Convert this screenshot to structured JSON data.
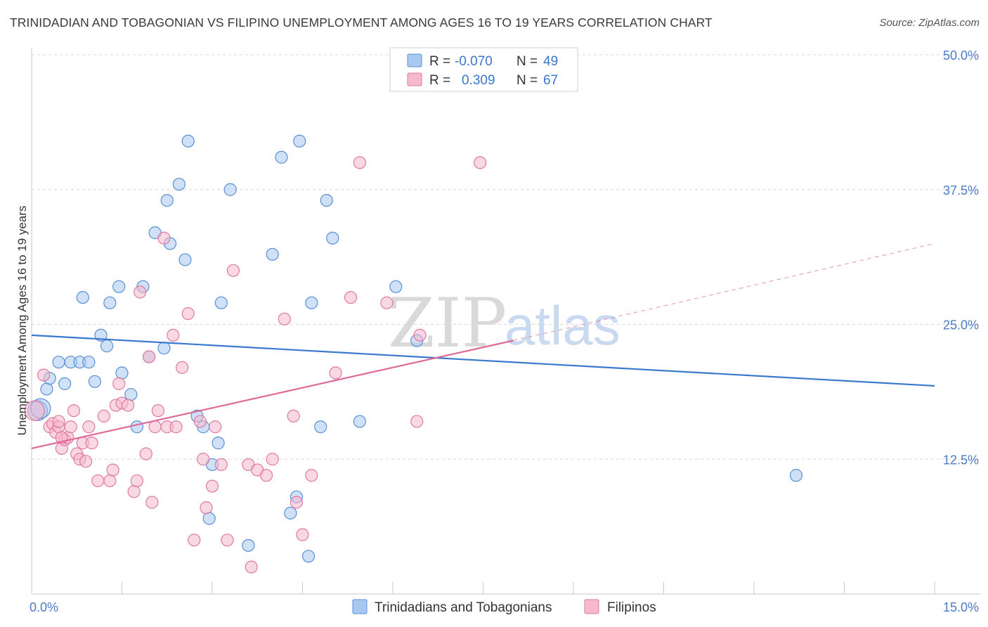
{
  "title": "TRINIDADIAN AND TOBAGONIAN VS FILIPINO UNEMPLOYMENT AMONG AGES 16 TO 19 YEARS CORRELATION CHART",
  "source": "Source: ZipAtlas.com",
  "watermark": {
    "zip": "ZIP",
    "atlas": "atlas"
  },
  "legend_top": {
    "rows": [
      {
        "r_label": "R =",
        "r_value": "-0.070",
        "n_label": "N =",
        "n_value": "49",
        "color": "#a8c8f0",
        "stroke": "#5b8fd6"
      },
      {
        "r_label": "R =",
        "r_value": "0.309",
        "n_label": "N =",
        "n_value": "67",
        "color": "#f5b8cc",
        "stroke": "#e07aa0"
      }
    ]
  },
  "legend_bottom": {
    "items": [
      {
        "label": "Trinidadians and Tobagonians",
        "color": "#a8c8f0"
      },
      {
        "label": "Filipinos",
        "color": "#f5b8cc"
      }
    ]
  },
  "colors": {
    "blue": "#3a78d0",
    "blue_fill": "#a8c8f0",
    "pink": "#e06a96",
    "pink_fill": "#f5b8cc",
    "grid": "#d8d8d8",
    "tick": "#4a7cc7"
  },
  "chart_data": {
    "type": "scatter",
    "title": "TRINIDADIAN AND TOBAGONIAN VS FILIPINO UNEMPLOYMENT AMONG AGES 16 TO 19 YEARS CORRELATION CHART",
    "xlabel": "",
    "ylabel": "Unemployment Among Ages 16 to 19 years",
    "xlim": [
      0,
      15
    ],
    "ylim": [
      0,
      50
    ],
    "x_tick_labels": [
      {
        "value": 0,
        "label": "0.0%"
      },
      {
        "value": 15,
        "label": "15.0%"
      }
    ],
    "y_tick_labels": [
      {
        "value": 12.5,
        "label": "12.5%"
      },
      {
        "value": 25,
        "label": "25.0%"
      },
      {
        "value": 37.5,
        "label": "37.5%"
      },
      {
        "value": 50,
        "label": "50.0%"
      }
    ],
    "grid": "horizontal dashed",
    "series": [
      {
        "name": "Trinidadians and Tobagonians",
        "color": "#a8c8f0",
        "points": [
          [
            0.1,
            17.0
          ],
          [
            0.25,
            19.0
          ],
          [
            0.3,
            20.0
          ],
          [
            0.45,
            21.5
          ],
          [
            0.55,
            19.5
          ],
          [
            0.65,
            21.5
          ],
          [
            0.8,
            21.5
          ],
          [
            0.85,
            27.5
          ],
          [
            0.95,
            21.5
          ],
          [
            1.05,
            19.7
          ],
          [
            1.15,
            24.0
          ],
          [
            1.25,
            23.0
          ],
          [
            1.3,
            27.0
          ],
          [
            1.45,
            28.5
          ],
          [
            1.5,
            20.5
          ],
          [
            1.65,
            18.5
          ],
          [
            1.75,
            15.5
          ],
          [
            1.85,
            28.5
          ],
          [
            1.95,
            22.0
          ],
          [
            2.05,
            33.5
          ],
          [
            2.2,
            22.8
          ],
          [
            2.25,
            36.5
          ],
          [
            2.3,
            32.5
          ],
          [
            2.45,
            38.0
          ],
          [
            2.55,
            31.0
          ],
          [
            2.6,
            42.0
          ],
          [
            2.75,
            16.5
          ],
          [
            2.85,
            15.5
          ],
          [
            2.95,
            7.0
          ],
          [
            3.0,
            12.0
          ],
          [
            3.1,
            14.0
          ],
          [
            3.15,
            27.0
          ],
          [
            3.3,
            37.5
          ],
          [
            3.6,
            4.5
          ],
          [
            4.0,
            31.5
          ],
          [
            4.15,
            40.5
          ],
          [
            4.3,
            7.5
          ],
          [
            4.4,
            9.0
          ],
          [
            4.45,
            42.0
          ],
          [
            4.6,
            3.5
          ],
          [
            4.65,
            27.0
          ],
          [
            4.8,
            15.5
          ],
          [
            4.9,
            36.5
          ],
          [
            5.0,
            33.0
          ],
          [
            5.45,
            16.0
          ],
          [
            6.05,
            28.5
          ],
          [
            6.4,
            23.5
          ],
          [
            12.7,
            11.0
          ],
          [
            0.15,
            17.2
          ]
        ],
        "trend": {
          "x": [
            0,
            15
          ],
          "y": [
            24.0,
            19.3
          ]
        }
      },
      {
        "name": "Filipinos",
        "color": "#f5b8cc",
        "points": [
          [
            0.05,
            17.0
          ],
          [
            0.2,
            20.3
          ],
          [
            0.3,
            15.5
          ],
          [
            0.35,
            15.8
          ],
          [
            0.4,
            15.0
          ],
          [
            0.45,
            15.5
          ],
          [
            0.5,
            13.5
          ],
          [
            0.55,
            14.3
          ],
          [
            0.6,
            14.5
          ],
          [
            0.65,
            15.5
          ],
          [
            0.7,
            17.0
          ],
          [
            0.75,
            13.0
          ],
          [
            0.8,
            12.5
          ],
          [
            0.85,
            14.0
          ],
          [
            0.9,
            12.3
          ],
          [
            0.95,
            15.5
          ],
          [
            1.0,
            14.0
          ],
          [
            1.1,
            10.5
          ],
          [
            1.2,
            16.5
          ],
          [
            1.3,
            10.5
          ],
          [
            1.35,
            11.5
          ],
          [
            1.4,
            17.5
          ],
          [
            1.45,
            19.5
          ],
          [
            1.5,
            17.7
          ],
          [
            1.6,
            17.5
          ],
          [
            1.7,
            9.5
          ],
          [
            1.75,
            10.5
          ],
          [
            1.8,
            28.0
          ],
          [
            1.9,
            13.0
          ],
          [
            1.95,
            22.0
          ],
          [
            2.0,
            8.5
          ],
          [
            2.05,
            15.5
          ],
          [
            2.1,
            17.0
          ],
          [
            2.2,
            33.0
          ],
          [
            2.25,
            15.5
          ],
          [
            2.35,
            24.0
          ],
          [
            2.4,
            15.5
          ],
          [
            2.5,
            21.0
          ],
          [
            2.6,
            26.0
          ],
          [
            2.7,
            5.0
          ],
          [
            2.8,
            16.0
          ],
          [
            2.85,
            12.5
          ],
          [
            2.9,
            8.0
          ],
          [
            3.0,
            10.0
          ],
          [
            3.05,
            15.5
          ],
          [
            3.15,
            12.0
          ],
          [
            3.25,
            5.0
          ],
          [
            3.35,
            30.0
          ],
          [
            3.6,
            12.0
          ],
          [
            3.65,
            2.5
          ],
          [
            3.75,
            11.5
          ],
          [
            3.9,
            11.0
          ],
          [
            4.0,
            12.5
          ],
          [
            4.2,
            25.5
          ],
          [
            4.35,
            16.5
          ],
          [
            4.4,
            8.5
          ],
          [
            4.5,
            5.5
          ],
          [
            4.65,
            11.0
          ],
          [
            5.05,
            20.5
          ],
          [
            5.3,
            27.5
          ],
          [
            5.45,
            40.0
          ],
          [
            5.9,
            27.0
          ],
          [
            6.4,
            16.0
          ],
          [
            6.45,
            24.0
          ],
          [
            7.45,
            40.0
          ],
          [
            0.5,
            14.5
          ],
          [
            0.45,
            16.0
          ]
        ],
        "trend": {
          "x": [
            0,
            8.0
          ],
          "y": [
            13.5,
            23.5
          ]
        },
        "trend_extension": {
          "x": [
            8.0,
            15
          ],
          "y": [
            23.5,
            32.5
          ]
        }
      }
    ]
  }
}
